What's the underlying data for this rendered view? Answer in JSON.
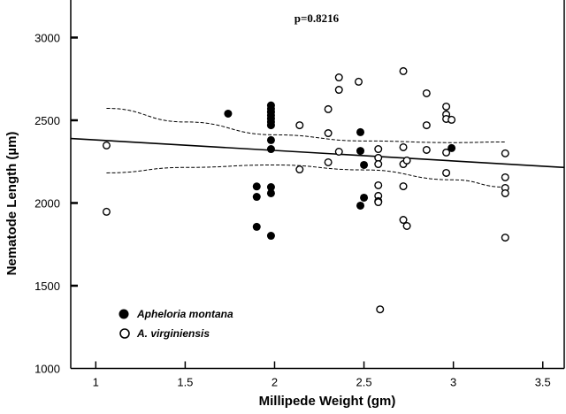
{
  "chart_data": {
    "type": "scatter",
    "title": "p=0.8216",
    "xlabel": "Millipede Weight (gm)",
    "ylabel": "Nematode Length (µm)",
    "xlim": [
      0.86,
      3.62
    ],
    "ylim": [
      1000,
      3227
    ],
    "xticks": [
      "1",
      "1.5",
      "2",
      "2.5",
      "3",
      "3.5"
    ],
    "yticks": [
      "1000",
      "1500",
      "2000",
      "2500",
      "3000"
    ],
    "grid": false,
    "legend_position": "bottom-left",
    "series": [
      {
        "name": "Apheloria montana",
        "marker": "filled-circle",
        "color": "#000000",
        "points": [
          [
            1.74,
            2540
          ],
          [
            1.98,
            2590
          ],
          [
            1.98,
            2570
          ],
          [
            1.98,
            2550
          ],
          [
            1.98,
            2530
          ],
          [
            1.98,
            2510
          ],
          [
            1.98,
            2490
          ],
          [
            1.98,
            2470
          ],
          [
            1.98,
            2380
          ],
          [
            1.98,
            2326
          ],
          [
            1.9,
            2100
          ],
          [
            1.9,
            2037
          ],
          [
            1.98,
            2096
          ],
          [
            1.98,
            2059
          ],
          [
            1.9,
            1856
          ],
          [
            1.98,
            1802
          ],
          [
            2.48,
            2428
          ],
          [
            2.48,
            2315
          ],
          [
            2.5,
            2230
          ],
          [
            2.5,
            2032
          ],
          [
            2.48,
            1984
          ],
          [
            2.99,
            2332
          ]
        ]
      },
      {
        "name": "A. virginiensis",
        "marker": "open-circle",
        "color": "#000000",
        "points": [
          [
            1.06,
            2348
          ],
          [
            1.06,
            1947
          ],
          [
            2.14,
            2470
          ],
          [
            2.14,
            2203
          ],
          [
            2.36,
            2759
          ],
          [
            2.36,
            2684
          ],
          [
            2.47,
            2733
          ],
          [
            2.72,
            2797
          ],
          [
            2.85,
            2663
          ],
          [
            2.3,
            2567
          ],
          [
            2.96,
            2583
          ],
          [
            2.96,
            2535
          ],
          [
            2.96,
            2508
          ],
          [
            2.99,
            2503
          ],
          [
            2.85,
            2470
          ],
          [
            2.3,
            2422
          ],
          [
            2.36,
            2310
          ],
          [
            2.58,
            2326
          ],
          [
            2.72,
            2337
          ],
          [
            2.85,
            2321
          ],
          [
            2.96,
            2305
          ],
          [
            3.29,
            2300
          ],
          [
            2.58,
            2273
          ],
          [
            2.58,
            2235
          ],
          [
            2.72,
            2235
          ],
          [
            2.74,
            2257
          ],
          [
            2.3,
            2246
          ],
          [
            2.96,
            2182
          ],
          [
            3.29,
            2155
          ],
          [
            3.29,
            2091
          ],
          [
            3.29,
            2059
          ],
          [
            2.58,
            2107
          ],
          [
            2.72,
            2101
          ],
          [
            2.58,
            2043
          ],
          [
            2.58,
            2011
          ],
          [
            2.58,
            2005
          ],
          [
            2.72,
            1898
          ],
          [
            2.74,
            1861
          ],
          [
            3.29,
            1791
          ],
          [
            2.59,
            1357
          ]
        ]
      }
    ],
    "regression_line": [
      [
        0.86,
        2390
      ],
      [
        3.62,
        2215
      ]
    ],
    "confidence_upper": [
      [
        1.06,
        2572
      ],
      [
        1.5,
        2490
      ],
      [
        2.0,
        2412
      ],
      [
        2.5,
        2375
      ],
      [
        3.0,
        2365
      ],
      [
        3.29,
        2369
      ]
    ],
    "confidence_lower": [
      [
        1.06,
        2182
      ],
      [
        1.5,
        2215
      ],
      [
        2.0,
        2230
      ],
      [
        2.5,
        2200
      ],
      [
        3.0,
        2140
      ],
      [
        3.29,
        2096
      ]
    ]
  }
}
